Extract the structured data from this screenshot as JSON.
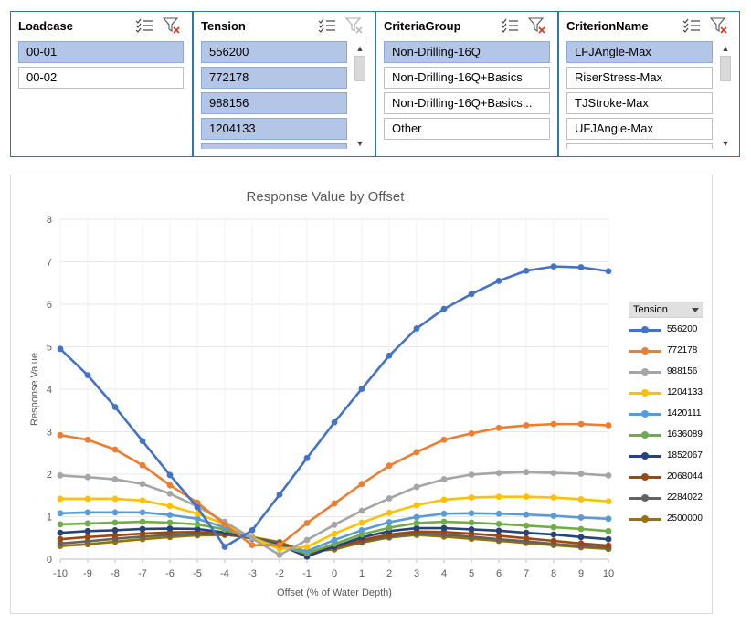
{
  "slicers": [
    {
      "title": "Loadcase",
      "items": [
        {
          "label": "00-01",
          "selected": true
        },
        {
          "label": "00-02",
          "selected": false
        }
      ],
      "scrollbar": false
    },
    {
      "title": "Tension",
      "items": [
        {
          "label": "556200",
          "selected": true
        },
        {
          "label": "772178",
          "selected": true
        },
        {
          "label": "988156",
          "selected": true
        },
        {
          "label": "1204133",
          "selected": true
        },
        {
          "label": "",
          "selected": true
        }
      ],
      "scrollbar": true
    },
    {
      "title": "CriteriaGroup",
      "items": [
        {
          "label": "Non-Drilling-16Q",
          "selected": true
        },
        {
          "label": "Non-Drilling-16Q+Basics",
          "selected": false
        },
        {
          "label": "Non-Drilling-16Q+Basics...",
          "selected": false
        },
        {
          "label": "Other",
          "selected": false
        }
      ],
      "scrollbar": true
    },
    {
      "title": "CriterionName",
      "items": [
        {
          "label": "LFJAngle-Max",
          "selected": true
        },
        {
          "label": "RiserStress-Max",
          "selected": false
        },
        {
          "label": "TJStroke-Max",
          "selected": false
        },
        {
          "label": "UFJAngle-Max",
          "selected": false
        },
        {
          "label": "",
          "selected": false
        }
      ],
      "scrollbar": true
    }
  ],
  "icons": {
    "multi_select": "multi-select-icon",
    "clear_filter": "clear-filter-icon",
    "scroll_up": "chevron-up-icon",
    "scroll_down": "chevron-down-icon"
  },
  "legend": {
    "title": "Tension"
  },
  "chart_data": {
    "type": "line",
    "title": "Response Value by Offset",
    "xlabel": "Offset (% of Water Depth)",
    "ylabel": "Response Value",
    "x": [
      -10,
      -9,
      -8,
      -7,
      -6,
      -5,
      -4,
      -3,
      -2,
      -1,
      0,
      1,
      2,
      3,
      4,
      5,
      6,
      7,
      8,
      9,
      10
    ],
    "xlim": [
      -10,
      10
    ],
    "ylim": [
      0,
      8
    ],
    "yticks": [
      0,
      1,
      2,
      3,
      4,
      5,
      6,
      7,
      8
    ],
    "grid": true,
    "legend_position": "right",
    "series": [
      {
        "name": "556200",
        "color": "#4472c4",
        "values": [
          4.95,
          4.33,
          3.58,
          2.78,
          1.98,
          1.22,
          0.29,
          0.68,
          1.52,
          2.38,
          3.22,
          4.01,
          4.79,
          5.43,
          5.89,
          6.24,
          6.55,
          6.79,
          6.89,
          6.87,
          6.78
        ]
      },
      {
        "name": "772178",
        "color": "#ed7d31",
        "values": [
          2.92,
          2.81,
          2.58,
          2.21,
          1.74,
          1.33,
          0.82,
          0.33,
          0.33,
          0.85,
          1.31,
          1.77,
          2.2,
          2.52,
          2.81,
          2.96,
          3.09,
          3.15,
          3.18,
          3.18,
          3.15
        ]
      },
      {
        "name": "988156",
        "color": "#a5a5a5",
        "values": [
          1.97,
          1.93,
          1.88,
          1.77,
          1.54,
          1.24,
          0.88,
          0.49,
          0.1,
          0.45,
          0.81,
          1.14,
          1.43,
          1.7,
          1.88,
          1.99,
          2.03,
          2.05,
          2.03,
          2.01,
          1.97
        ]
      },
      {
        "name": "1204133",
        "color": "#ffc000",
        "values": [
          1.42,
          1.42,
          1.42,
          1.38,
          1.25,
          1.07,
          0.82,
          0.51,
          0.24,
          0.29,
          0.6,
          0.86,
          1.09,
          1.27,
          1.4,
          1.45,
          1.47,
          1.47,
          1.45,
          1.41,
          1.36
        ]
      },
      {
        "name": "1420111",
        "color": "#5b9bd5",
        "values": [
          1.08,
          1.1,
          1.1,
          1.1,
          1.04,
          0.95,
          0.75,
          0.5,
          0.28,
          0.19,
          0.45,
          0.68,
          0.87,
          0.99,
          1.07,
          1.08,
          1.07,
          1.05,
          1.02,
          0.98,
          0.95
        ]
      },
      {
        "name": "1636089",
        "color": "#70ad47",
        "values": [
          0.82,
          0.84,
          0.86,
          0.88,
          0.86,
          0.82,
          0.7,
          0.49,
          0.3,
          0.14,
          0.36,
          0.58,
          0.74,
          0.85,
          0.88,
          0.86,
          0.83,
          0.79,
          0.75,
          0.71,
          0.66
        ]
      },
      {
        "name": "1852067",
        "color": "#264478",
        "values": [
          0.62,
          0.66,
          0.68,
          0.71,
          0.72,
          0.71,
          0.63,
          0.48,
          0.33,
          0.06,
          0.3,
          0.51,
          0.66,
          0.73,
          0.73,
          0.7,
          0.67,
          0.62,
          0.58,
          0.52,
          0.47
        ]
      },
      {
        "name": "2068044",
        "color": "#9e480e",
        "values": [
          0.47,
          0.52,
          0.56,
          0.6,
          0.63,
          0.64,
          0.6,
          0.49,
          0.36,
          0.12,
          0.29,
          0.45,
          0.58,
          0.65,
          0.64,
          0.6,
          0.55,
          0.49,
          0.43,
          0.37,
          0.32
        ]
      },
      {
        "name": "2284022",
        "color": "#636363",
        "values": [
          0.37,
          0.42,
          0.48,
          0.53,
          0.57,
          0.59,
          0.58,
          0.5,
          0.38,
          0.15,
          0.27,
          0.42,
          0.53,
          0.6,
          0.58,
          0.53,
          0.47,
          0.42,
          0.36,
          0.31,
          0.27
        ]
      },
      {
        "name": "2500000",
        "color": "#997300",
        "values": [
          0.31,
          0.35,
          0.41,
          0.47,
          0.52,
          0.56,
          0.57,
          0.52,
          0.4,
          0.17,
          0.23,
          0.39,
          0.51,
          0.57,
          0.53,
          0.48,
          0.43,
          0.38,
          0.33,
          0.28,
          0.24
        ]
      }
    ]
  }
}
